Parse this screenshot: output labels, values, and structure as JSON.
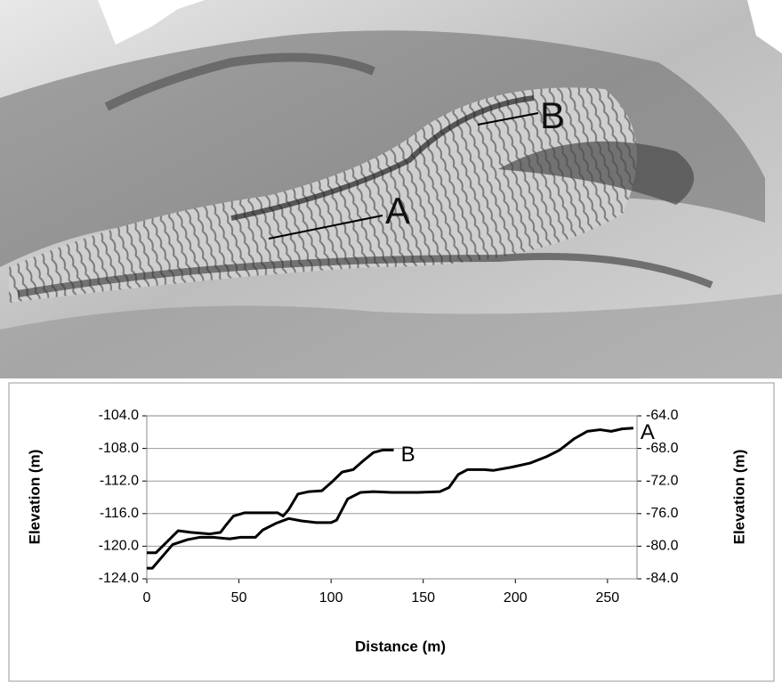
{
  "map": {
    "labels": [
      "A",
      "B"
    ]
  },
  "chart_data": {
    "type": "line",
    "xlabel": "Distance (m)",
    "ylabel": "Elevation (m)",
    "y2label": "Elevation (m)",
    "xlim": [
      0,
      266
    ],
    "xticks": [
      0,
      50,
      100,
      150,
      200,
      250
    ],
    "ylim": [
      -124,
      -104
    ],
    "yticks": [
      {
        "value": -124,
        "label": "-124.0"
      },
      {
        "value": -120,
        "label": "-120.0"
      },
      {
        "value": -116,
        "label": "-116.0"
      },
      {
        "value": -112,
        "label": "-112.0"
      },
      {
        "value": -108,
        "label": "-108.0"
      },
      {
        "value": -104,
        "label": "-104.0"
      }
    ],
    "y2lim": [
      -84,
      -64
    ],
    "y2ticks": [
      {
        "value": -84,
        "label": "-84.0"
      },
      {
        "value": -80,
        "label": "-80.0"
      },
      {
        "value": -76,
        "label": "-76.0"
      },
      {
        "value": -72,
        "label": "-72.0"
      },
      {
        "value": -68,
        "label": "-68.0"
      },
      {
        "value": -64,
        "label": "-64.0"
      }
    ],
    "grid": true,
    "series": [
      {
        "name": "B",
        "color": "#000000",
        "x": [
          0,
          5,
          17,
          24,
          34,
          40,
          43,
          47,
          53,
          71,
          74,
          77,
          82,
          88,
          95,
          101,
          106,
          112,
          117,
          123,
          128,
          134
        ],
        "values": [
          -120.8,
          -120.8,
          -118.1,
          -118.3,
          -118.5,
          -118.3,
          -117.4,
          -116.3,
          -115.9,
          -115.9,
          -116.3,
          -115.5,
          -113.6,
          -113.3,
          -113.2,
          -112.0,
          -110.9,
          -110.6,
          -109.6,
          -108.5,
          -108.2,
          -108.2
        ]
      },
      {
        "name": "A",
        "color": "#000000",
        "axis": "y2",
        "x": [
          0,
          3,
          14,
          22,
          29,
          36,
          45,
          51,
          59,
          63,
          70,
          77,
          84,
          92,
          100,
          103,
          109,
          116,
          123,
          133,
          147,
          159,
          164,
          169,
          174,
          183,
          188,
          198,
          208,
          217,
          224,
          232,
          239,
          246,
          252,
          258,
          264
        ],
        "values": [
          -82.7,
          -82.7,
          -79.8,
          -79.2,
          -78.9,
          -78.9,
          -79.1,
          -78.9,
          -78.9,
          -78.0,
          -77.2,
          -76.6,
          -76.9,
          -77.1,
          -77.1,
          -76.8,
          -74.2,
          -73.4,
          -73.3,
          -73.4,
          -73.4,
          -73.3,
          -72.8,
          -71.2,
          -70.6,
          -70.6,
          -70.7,
          -70.3,
          -69.8,
          -69.0,
          -68.2,
          -66.8,
          -65.9,
          -65.7,
          -65.9,
          -65.6,
          -65.5
        ]
      }
    ]
  }
}
